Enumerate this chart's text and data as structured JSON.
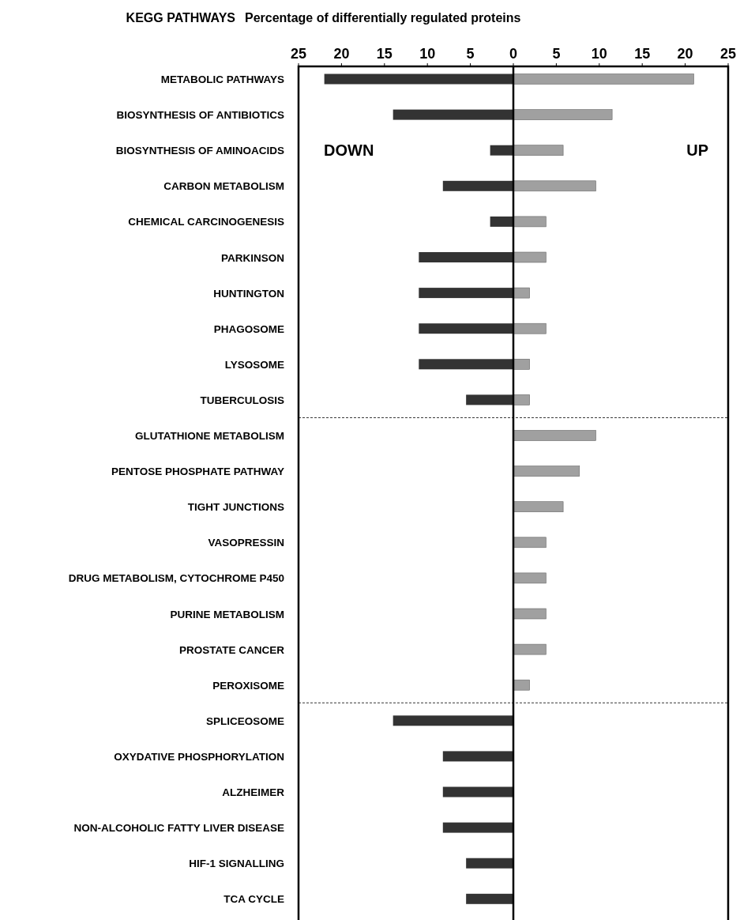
{
  "chart_data": {
    "type": "bar",
    "orientation": "horizontal",
    "stacked": true,
    "xlabel": "Percentage of differentially regulated proteins",
    "ylabel": "KEGG PATHWAYS",
    "categories": [
      "METABOLIC PATHWAYS",
      "BIOSYNTHESIS OF ANTIBIOTICS",
      "BIOSYNTHESIS OF AMINOACIDS",
      "CARBON METABOLISM",
      "CHEMICAL CARCINOGENESIS",
      "PARKINSON",
      "HUNTINGTON",
      "PHAGOSOME",
      "LYSOSOME",
      "TUBERCULOSIS",
      "GLUTATHIONE METABOLISM",
      "PENTOSE PHOSPHATE PATHWAY",
      "TIGHT JUNCTIONS",
      "VASOPRESSIN",
      "DRUG METABOLISM, CYTOCHROME P450",
      "PURINE METABOLISM",
      "PROSTATE CANCER",
      "PEROXISOME",
      "SPLICEOSOME",
      "OXYDATIVE PHOSPHORYLATION",
      "ALZHEIMER",
      "NON-ALCOHOLIC FATTY LIVER DISEASE",
      "HIF-1 SIGNALLING",
      "TCA CYCLE"
    ],
    "series": [
      {
        "color": "#333333",
        "values": [
          -22,
          -14,
          -2.7,
          -8.2,
          -2.7,
          -11,
          -11,
          -11,
          -11,
          -5.5,
          null,
          null,
          null,
          null,
          null,
          null,
          null,
          null,
          -14,
          -8.2,
          -8.2,
          -8.2,
          -5.5,
          -5.5
        ]
      },
      {
        "color": "#a0a0a0",
        "values": [
          21,
          11.5,
          5.8,
          9.6,
          3.8,
          3.8,
          1.9,
          3.8,
          1.9,
          1.9,
          9.6,
          7.7,
          5.8,
          3.8,
          3.8,
          3.8,
          3.8,
          1.9,
          null,
          null,
          null,
          null,
          null,
          null
        ]
      }
    ],
    "xlim": [
      -25,
      25
    ],
    "xticks": [
      {
        "value": -25,
        "label": "25"
      },
      {
        "value": -20,
        "label": "20"
      },
      {
        "value": -15,
        "label": "15"
      },
      {
        "value": -10,
        "label": "10"
      },
      {
        "value": -5,
        "label": "5"
      },
      0,
      5,
      10,
      15,
      20,
      25
    ],
    "annotations": [
      "DOWN",
      "UP"
    ],
    "grid": false
  }
}
